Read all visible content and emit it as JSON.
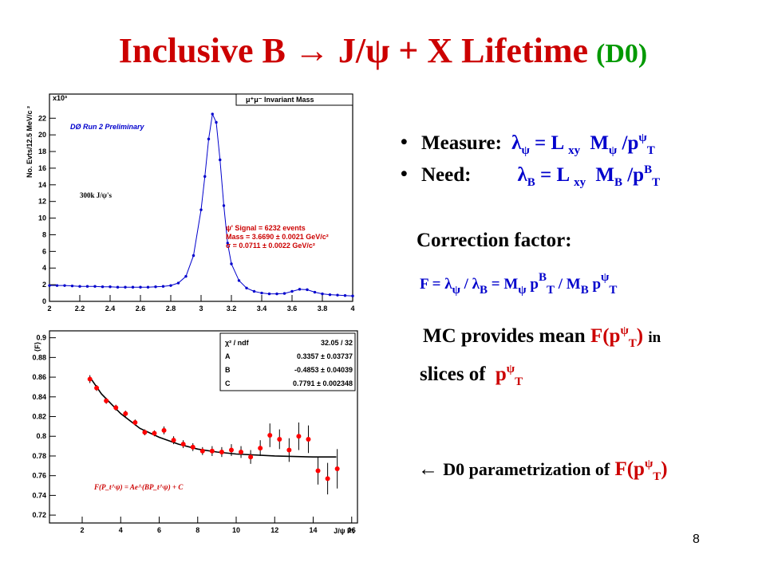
{
  "title": {
    "main": "Inclusive B → J/ψ + X Lifetime",
    "tag": "(D0)"
  },
  "measure": [
    "Measure:",
    "λ",
    "ψ",
    "= L",
    "xy",
    "M",
    "ψ",
    "/p",
    "ψ",
    "T"
  ],
  "need": [
    "Need:",
    "λ",
    "B",
    "= L",
    "xy",
    "M",
    "B",
    "/p",
    "B",
    "T"
  ],
  "correction": "Correction factor:",
  "formula": [
    "F = λ",
    "ψ",
    "/ λ",
    "B",
    "= M",
    "ψ",
    "p",
    "B",
    "T",
    "/ M",
    "B",
    "p",
    "ψ",
    "T"
  ],
  "mc": [
    "MC provides mean",
    "F(p",
    "ψ",
    "T",
    ")",
    "in"
  ],
  "slices": [
    "slices of",
    "p",
    "ψ",
    "T"
  ],
  "param": [
    "←",
    "D0 parametrization of",
    "F(p",
    "ψ",
    "T",
    ")"
  ],
  "page_number": "8",
  "chart_data": [
    {
      "type": "line",
      "ylabel": "No. Evts/12.5 MeV/c ²",
      "multiplier": "x10³",
      "legend_box": "μ⁺μ⁻ Invariant Mass",
      "experiment": "DØ Run 2 Preliminary",
      "annotation": "300k J/ψ's",
      "stats": [
        "ψ' Signal = 6232 events",
        "Mass = 3.6690 ± 0.0021 GeV/c²",
        "σ = 0.0711 ± 0.0022 GeV/c²"
      ],
      "xlim": [
        2,
        4
      ],
      "ylim": [
        0,
        24.9
      ],
      "xticks": [
        2,
        2.2,
        2.4,
        2.6,
        2.8,
        3,
        3.2,
        3.4,
        3.6,
        3.8,
        4
      ],
      "yticks": [
        0,
        2,
        4,
        6,
        8,
        10,
        12,
        14,
        16,
        18,
        20,
        22
      ],
      "series": [
        {
          "color": "#0000cc",
          "x": [
            2.0,
            2.05,
            2.1,
            2.15,
            2.2,
            2.25,
            2.3,
            2.35,
            2.4,
            2.45,
            2.5,
            2.55,
            2.6,
            2.65,
            2.7,
            2.75,
            2.8,
            2.85,
            2.9,
            2.95,
            3.0,
            3.025,
            3.05,
            3.075,
            3.1,
            3.125,
            3.15,
            3.175,
            3.2,
            3.25,
            3.3,
            3.35,
            3.4,
            3.45,
            3.5,
            3.55,
            3.6,
            3.65,
            3.7,
            3.75,
            3.8,
            3.85,
            3.9,
            3.95,
            4.0
          ],
          "values": [
            1.9,
            1.9,
            1.9,
            1.85,
            1.8,
            1.8,
            1.8,
            1.75,
            1.75,
            1.7,
            1.7,
            1.7,
            1.7,
            1.7,
            1.75,
            1.8,
            1.9,
            2.2,
            3.0,
            5.5,
            11.0,
            15.0,
            19.5,
            22.5,
            21.5,
            17.0,
            11.5,
            7.0,
            4.5,
            2.5,
            1.6,
            1.2,
            1.0,
            0.9,
            0.9,
            0.95,
            1.2,
            1.45,
            1.4,
            1.1,
            0.9,
            0.8,
            0.75,
            0.7,
            0.65
          ]
        }
      ]
    },
    {
      "type": "scatter",
      "ylabel": "⟨F⟩",
      "xlabel": "J/ψ Pt",
      "stats": [
        [
          "χ² / ndf",
          "32.05 / 32"
        ],
        [
          "A",
          "0.3357 ± 0.03737"
        ],
        [
          "B",
          "-0.4853 ± 0.04039"
        ],
        [
          "C",
          "0.7791 ± 0.002348"
        ]
      ],
      "fit_label": "F(P_t^ψ) = Ae^(BP_t^ψ) + C",
      "xlim": [
        0.3,
        16.3
      ],
      "ylim": [
        0.712,
        0.907
      ],
      "xticks": [
        2,
        4,
        6,
        8,
        10,
        12,
        14,
        16
      ],
      "yticks": [
        0.72,
        0.74,
        0.76,
        0.78,
        0.8,
        0.82,
        0.84,
        0.86,
        0.88,
        0.9
      ],
      "series": [
        {
          "color": "#ff0000",
          "x": [
            2.4,
            2.75,
            3.25,
            3.75,
            4.25,
            4.75,
            5.25,
            5.75,
            6.25,
            6.75,
            7.25,
            7.75,
            8.25,
            8.75,
            9.25,
            9.75,
            10.25,
            10.75,
            11.25,
            11.75,
            12.25,
            12.75,
            13.25,
            13.75,
            14.25,
            14.75,
            15.25
          ],
          "values": [
            0.858,
            0.849,
            0.836,
            0.829,
            0.823,
            0.814,
            0.804,
            0.803,
            0.806,
            0.796,
            0.792,
            0.789,
            0.785,
            0.785,
            0.784,
            0.786,
            0.784,
            0.779,
            0.788,
            0.801,
            0.797,
            0.786,
            0.8,
            0.797,
            0.765,
            0.757,
            0.767
          ],
          "errors": [
            0.004,
            0.003,
            0.003,
            0.003,
            0.003,
            0.003,
            0.003,
            0.003,
            0.004,
            0.004,
            0.004,
            0.004,
            0.004,
            0.005,
            0.005,
            0.006,
            0.006,
            0.007,
            0.008,
            0.012,
            0.01,
            0.012,
            0.014,
            0.014,
            0.014,
            0.016,
            0.02
          ]
        }
      ],
      "fit": {
        "color": "#000000",
        "x": [
          2.4,
          3,
          4,
          5,
          6,
          7,
          8,
          9,
          10,
          12,
          14,
          15.2
        ],
        "values": [
          0.86,
          0.843,
          0.823,
          0.808,
          0.799,
          0.792,
          0.787,
          0.784,
          0.782,
          0.78,
          0.779,
          0.779
        ]
      }
    }
  ]
}
